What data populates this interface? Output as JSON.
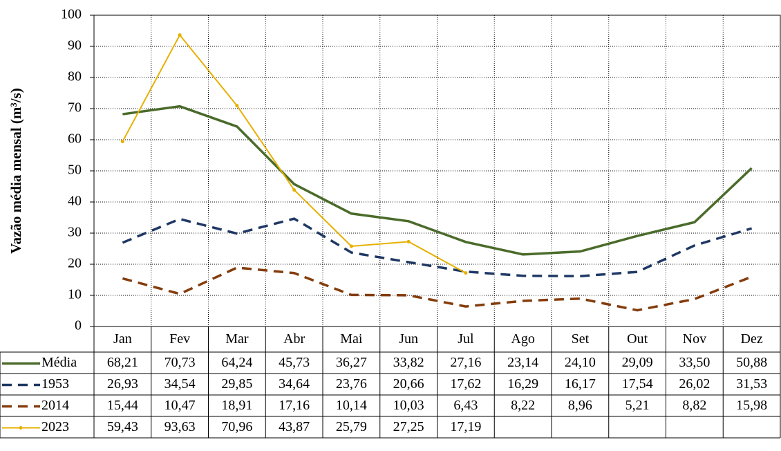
{
  "chart_data": {
    "type": "line",
    "y_label": "Vazão média mensal (m³/s)",
    "categories": [
      "Jan",
      "Fev",
      "Mar",
      "Abr",
      "Mai",
      "Jun",
      "Jul",
      "Ago",
      "Set",
      "Out",
      "Nov",
      "Dez"
    ],
    "series": [
      {
        "name": "Média",
        "color": "#4a6b2a",
        "line_style": "solid",
        "markers": false,
        "values": [
          68.21,
          70.73,
          64.24,
          45.73,
          36.27,
          33.82,
          27.16,
          23.14,
          24.1,
          29.09,
          33.5,
          50.88
        ],
        "value_labels": [
          "68,21",
          "70,73",
          "64,24",
          "45,73",
          "36,27",
          "33,82",
          "27,16",
          "23,14",
          "24,10",
          "29,09",
          "33,50",
          "50,88"
        ]
      },
      {
        "name": "1953",
        "color": "#1f3864",
        "line_style": "dashed",
        "markers": false,
        "values": [
          26.93,
          34.54,
          29.85,
          34.64,
          23.76,
          20.66,
          17.62,
          16.29,
          16.17,
          17.54,
          26.02,
          31.53
        ],
        "value_labels": [
          "26,93",
          "34,54",
          "29,85",
          "34,64",
          "23,76",
          "20,66",
          "17,62",
          "16,29",
          "16,17",
          "17,54",
          "26,02",
          "31,53"
        ]
      },
      {
        "name": "2014",
        "color": "#843c0c",
        "line_style": "dashed",
        "markers": false,
        "values": [
          15.44,
          10.47,
          18.91,
          17.16,
          10.14,
          10.03,
          6.43,
          8.22,
          8.96,
          5.21,
          8.82,
          15.98
        ],
        "value_labels": [
          "15,44",
          "10,47",
          "18,91",
          "17,16",
          "10,14",
          "10,03",
          "6,43",
          "8,22",
          "8,96",
          "5,21",
          "8,82",
          "15,98"
        ]
      },
      {
        "name": "2023",
        "color": "#e6b000",
        "line_style": "solid",
        "markers": true,
        "values": [
          59.43,
          93.63,
          70.96,
          43.87,
          25.79,
          27.25,
          17.19,
          null,
          null,
          null,
          null,
          null
        ],
        "value_labels": [
          "59,43",
          "93,63",
          "70,96",
          "43,87",
          "25,79",
          "27,25",
          "17,19",
          null,
          null,
          null,
          null,
          null
        ]
      }
    ],
    "ylim": [
      0,
      100
    ],
    "yticks": [
      0,
      10,
      20,
      30,
      40,
      50,
      60,
      70,
      80,
      90,
      100
    ],
    "grid": true
  }
}
